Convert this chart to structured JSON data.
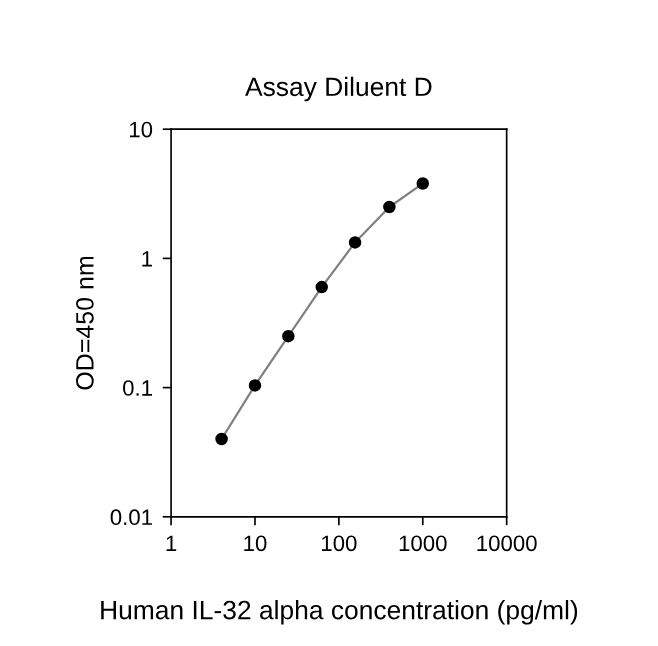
{
  "chart_data": {
    "type": "line",
    "title": "Assay Diluent D",
    "xlabel": "Human IL-32 alpha concentration (pg/ml)",
    "ylabel": "OD=450 nm",
    "x": [
      4,
      10,
      25,
      62.5,
      156,
      400,
      1000
    ],
    "series": [
      {
        "color": "#000000",
        "values": [
          0.04,
          0.104,
          0.25,
          0.6,
          1.33,
          2.5,
          3.8
        ]
      }
    ],
    "log": "xy",
    "xlim": [
      1,
      10000
    ],
    "ylim": [
      0.01,
      10
    ],
    "xticks": [
      1,
      10,
      100,
      1000,
      10000
    ],
    "yticks": [
      0.01,
      0.1,
      1,
      10
    ],
    "marker": "circle",
    "line_style": "solid",
    "grid": false,
    "legend": false
  }
}
